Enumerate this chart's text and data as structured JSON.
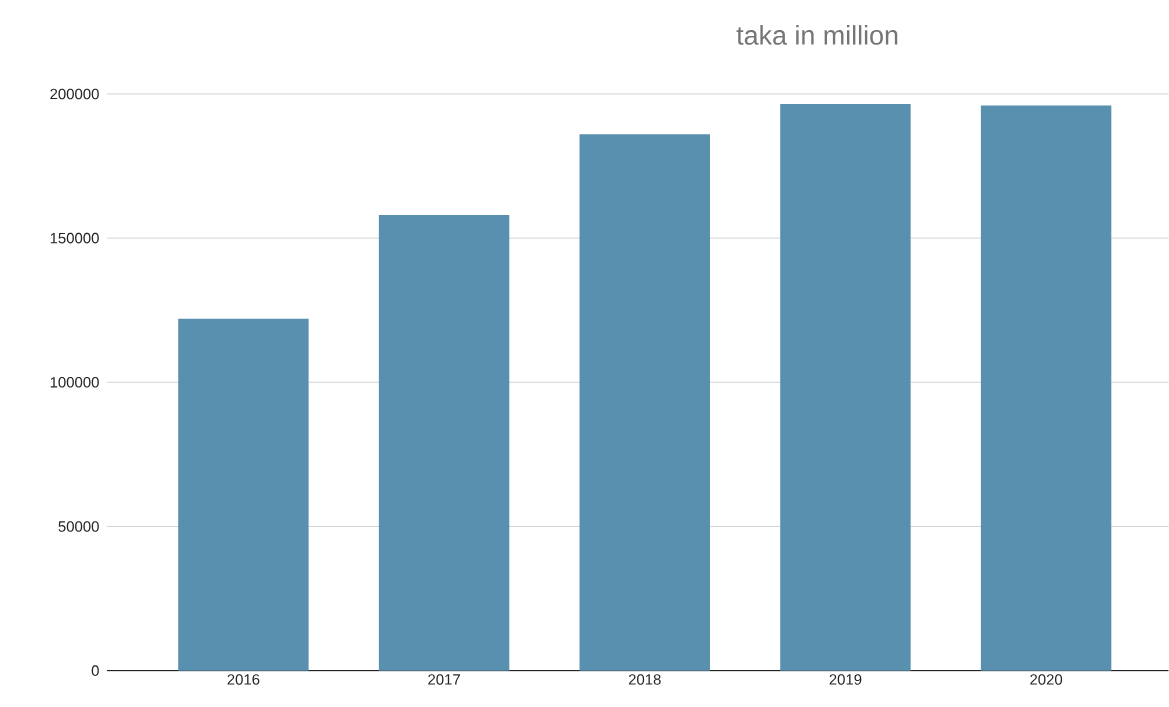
{
  "chart_data": {
    "type": "bar",
    "title": "taka in million",
    "categories": [
      "2016",
      "2017",
      "2018",
      "2019",
      "2020"
    ],
    "values": [
      122000,
      158000,
      186000,
      196500,
      196000
    ],
    "color": "#5990af",
    "ylim": [
      0,
      200000
    ],
    "yticks": [
      0,
      50000,
      100000,
      150000,
      200000
    ],
    "grid": "y"
  }
}
